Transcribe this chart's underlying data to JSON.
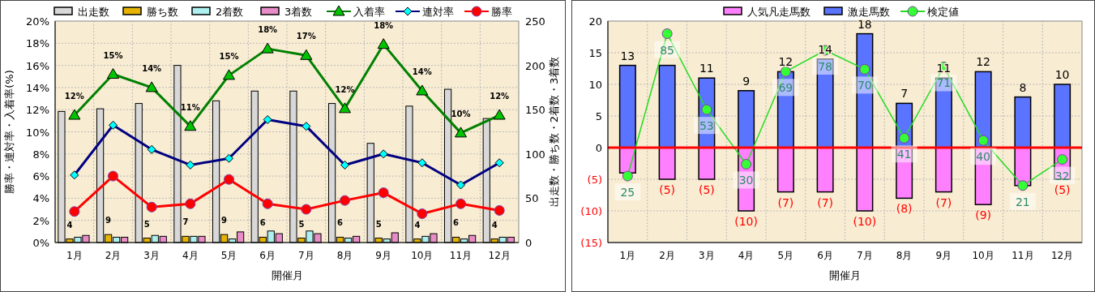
{
  "chart_data": [
    {
      "type": "bar",
      "categories": [
        "1月",
        "2月",
        "3月",
        "4月",
        "5月",
        "6月",
        "7月",
        "8月",
        "9月",
        "10月",
        "11月",
        "12月"
      ],
      "xlabel": "開催月",
      "ylabel": "勝率・連対率・入着率(%)",
      "y2label": "出走数・勝ち数・2着数・3着数",
      "ylim": [
        0,
        20
      ],
      "yticks": [
        {
          "value": 0,
          "label": "0%"
        },
        {
          "value": 2,
          "label": "2%"
        },
        {
          "value": 4,
          "label": "4%"
        },
        {
          "value": 6,
          "label": "6%"
        },
        {
          "value": 8,
          "label": "8%"
        },
        {
          "value": 10,
          "label": "10%"
        },
        {
          "value": 12,
          "label": "12%"
        },
        {
          "value": 14,
          "label": "14%"
        },
        {
          "value": 16,
          "label": "16%"
        },
        {
          "value": 18,
          "label": "18%"
        },
        {
          "value": 20,
          "label": "20%"
        }
      ],
      "y2lim": [
        0,
        250
      ],
      "y2ticks": [
        0,
        50,
        100,
        150,
        200,
        250
      ],
      "grid": true,
      "legend": "top",
      "series": [
        {
          "name": "出走数",
          "type": "bar",
          "axis": "y2",
          "color": "#d8d8d8",
          "values": [
            148,
            151,
            157,
            200,
            160,
            171,
            171,
            157,
            112,
            154,
            173,
            140
          ]
        },
        {
          "name": "勝ち数",
          "type": "bar",
          "axis": "y2",
          "color": "#e6b400",
          "values": [
            4,
            9,
            5,
            7,
            9,
            6,
            5,
            6,
            5,
            4,
            6,
            4
          ],
          "value_labels": [
            "4",
            "9",
            "5",
            "7",
            "9",
            "6",
            "5",
            "6",
            "5",
            "4",
            "6",
            "4"
          ]
        },
        {
          "name": "2着数",
          "type": "bar",
          "axis": "y2",
          "color": "#aef0f0",
          "values": [
            6,
            6,
            8,
            7,
            4,
            13,
            13,
            5,
            4,
            7,
            4,
            6
          ]
        },
        {
          "name": "3着数",
          "type": "bar",
          "axis": "y2",
          "color": "#e88cc8",
          "values": [
            8,
            6,
            7,
            7,
            12,
            10,
            10,
            7,
            11,
            10,
            8,
            6
          ]
        },
        {
          "name": "入着率",
          "type": "line",
          "axis": "y",
          "color": "#008000",
          "marker": "triangle",
          "values": [
            11.5,
            15.2,
            14.0,
            10.5,
            15.1,
            17.5,
            16.9,
            12.1,
            17.9,
            13.7,
            9.9,
            11.5
          ],
          "value_labels": [
            "12%",
            "15%",
            "14%",
            "11%",
            "15%",
            "18%",
            "17%",
            "12%",
            "18%",
            "14%",
            "10%",
            "12%"
          ]
        },
        {
          "name": "連対率",
          "type": "line",
          "axis": "y",
          "color": "#000080",
          "marker": "diamond",
          "values": [
            6.1,
            10.6,
            8.4,
            7.0,
            7.6,
            11.1,
            10.5,
            7.0,
            8.0,
            7.2,
            5.2,
            7.2
          ]
        },
        {
          "name": "勝率",
          "type": "line",
          "axis": "y",
          "color": "#ff0000",
          "marker": "circle",
          "values": [
            2.8,
            6.0,
            3.2,
            3.5,
            5.7,
            3.5,
            3.0,
            3.8,
            4.5,
            2.6,
            3.5,
            2.9
          ]
        }
      ]
    },
    {
      "type": "bar",
      "stacked": true,
      "categories": [
        "1月",
        "2月",
        "3月",
        "4月",
        "5月",
        "6月",
        "7月",
        "8月",
        "9月",
        "10月",
        "11月",
        "12月"
      ],
      "xlabel": "開催月",
      "ylim": [
        -15,
        20
      ],
      "yticks": [
        {
          "value": -15,
          "label": "(15)"
        },
        {
          "value": -10,
          "label": "(10)"
        },
        {
          "value": -5,
          "label": "(5)"
        },
        0,
        5,
        10,
        15,
        20
      ],
      "y2lim": [
        -3,
        90.3
      ],
      "grid": true,
      "legend": "top",
      "ref_lines": [
        {
          "axis": "y",
          "value": 0,
          "color": "#ff0000"
        }
      ],
      "series": [
        {
          "name": "人気凡走馬数",
          "type": "bar",
          "color": "#ff80ff",
          "values": [
            -4,
            -5,
            -5,
            -10,
            -7,
            -7,
            -10,
            -8,
            -7,
            -9,
            -6,
            -5
          ],
          "value_labels": [
            null,
            "(5)",
            "(5)",
            "(10)",
            "(7)",
            "(7)",
            "(10)",
            "(8)",
            "(7)",
            "(9)",
            null,
            "(5)"
          ]
        },
        {
          "name": "激走馬数",
          "type": "bar",
          "color": "#5a74ff",
          "values": [
            13,
            13,
            11,
            9,
            12,
            14,
            18,
            7,
            11,
            12,
            8,
            10
          ],
          "value_labels": [
            "13",
            null,
            "11",
            "9",
            "12",
            "14",
            "18",
            "7",
            "11",
            "12",
            "8",
            "10"
          ]
        },
        {
          "name": "検定値",
          "type": "line",
          "axis": "y2",
          "color": "#22dd22",
          "marker": "circle",
          "values": [
            25,
            85,
            53,
            30,
            69,
            78,
            70,
            41,
            71,
            40,
            21,
            32
          ],
          "value_labels": [
            "25",
            "85",
            "53",
            "30",
            "69",
            "78",
            "70",
            "41",
            "71",
            "40",
            "21",
            "32"
          ]
        }
      ]
    }
  ]
}
